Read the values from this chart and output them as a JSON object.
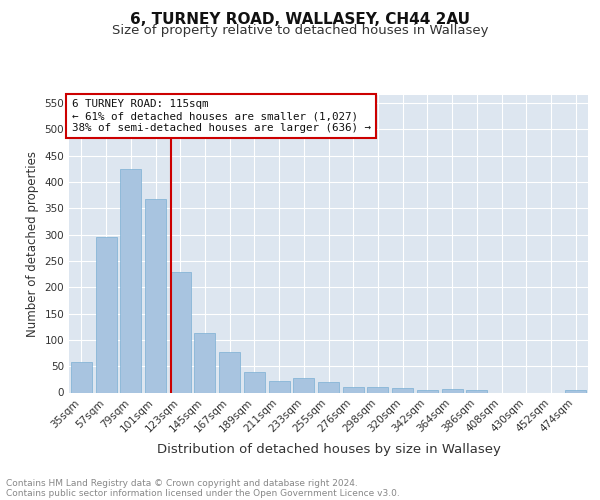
{
  "title": "6, TURNEY ROAD, WALLASEY, CH44 2AU",
  "subtitle": "Size of property relative to detached houses in Wallasey",
  "xlabel": "Distribution of detached houses by size in Wallasey",
  "ylabel": "Number of detached properties",
  "footnote1": "Contains HM Land Registry data © Crown copyright and database right 2024.",
  "footnote2": "Contains public sector information licensed under the Open Government Licence v3.0.",
  "bar_labels": [
    "35sqm",
    "57sqm",
    "79sqm",
    "101sqm",
    "123sqm",
    "145sqm",
    "167sqm",
    "189sqm",
    "211sqm",
    "233sqm",
    "255sqm",
    "276sqm",
    "298sqm",
    "320sqm",
    "342sqm",
    "364sqm",
    "386sqm",
    "408sqm",
    "430sqm",
    "452sqm",
    "474sqm"
  ],
  "bar_values": [
    57,
    295,
    425,
    367,
    228,
    113,
    76,
    38,
    21,
    28,
    19,
    10,
    10,
    9,
    5,
    7,
    5,
    0,
    0,
    0,
    4
  ],
  "bar_color": "#a8c4e0",
  "bar_edge_color": "#7bafd4",
  "bar_linewidth": 0.5,
  "annotation_title": "6 TURNEY ROAD: 115sqm",
  "annotation_line1": "← 61% of detached houses are smaller (1,027)",
  "annotation_line2": "38% of semi-detached houses are larger (636) →",
  "annotation_box_color": "#cc0000",
  "ylim": [
    0,
    565
  ],
  "yticks": [
    0,
    50,
    100,
    150,
    200,
    250,
    300,
    350,
    400,
    450,
    500,
    550
  ],
  "bg_color": "#dde6f0",
  "grid_color": "#ffffff",
  "title_fontsize": 11,
  "subtitle_fontsize": 9.5,
  "ylabel_fontsize": 8.5,
  "xlabel_fontsize": 9.5,
  "tick_fontsize": 7.5,
  "footnote_fontsize": 6.5
}
